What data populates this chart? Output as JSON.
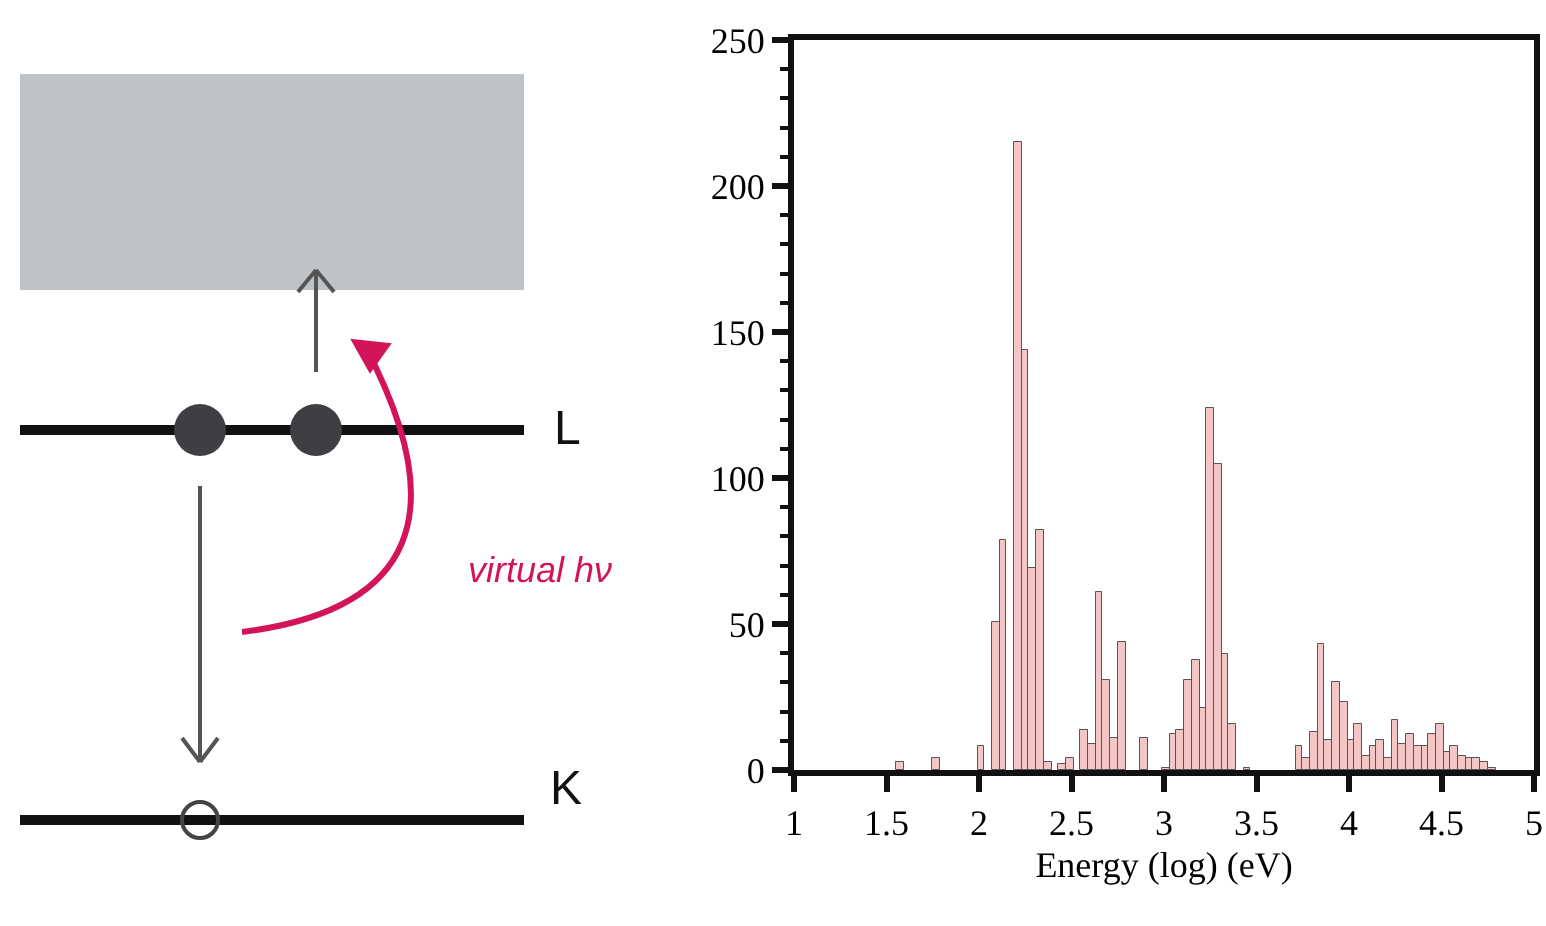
{
  "chart_data": {
    "type": "histogram",
    "xlabel": "Energy (log) (eV)",
    "bins": [
      1.51,
      1.55,
      1.59,
      1.63,
      1.67,
      1.71,
      1.75,
      1.79,
      1.83,
      1.87,
      1.91,
      1.95,
      1.99,
      2.03,
      2.07,
      2.11,
      2.15,
      2.19,
      2.23,
      2.27,
      2.31,
      2.35,
      2.39,
      2.43,
      2.47,
      2.51,
      2.55,
      2.59,
      2.63,
      2.67,
      2.71,
      2.75,
      2.79,
      2.83,
      2.87,
      2.91,
      2.95,
      2.99,
      3.03,
      3.07,
      3.11,
      3.15,
      3.19,
      3.23,
      3.27,
      3.31,
      3.35,
      3.39,
      3.43,
      3.47,
      3.51,
      3.55,
      3.59,
      3.63,
      3.67,
      3.71,
      3.75,
      3.79,
      3.83,
      3.87,
      3.91,
      3.95,
      3.99,
      4.03,
      4.07,
      4.11,
      4.15,
      4.19,
      4.23,
      4.27,
      4.31,
      4.35,
      4.39,
      4.43,
      4.47,
      4.51,
      4.55,
      4.59,
      4.63,
      4.67,
      4.71,
      4.75,
      4.79
    ],
    "values": [
      0,
      3,
      0,
      0,
      0,
      0,
      4,
      0,
      0,
      0,
      0,
      0,
      8,
      0,
      51,
      79,
      0,
      215,
      144,
      69,
      82,
      3,
      0,
      2,
      4,
      0,
      14,
      9,
      61,
      31,
      11,
      44,
      0,
      0,
      11,
      0,
      0,
      1,
      12,
      14,
      31,
      38,
      21,
      124,
      105,
      40,
      16,
      0,
      1,
      0,
      0,
      0,
      0,
      0,
      0,
      8,
      4,
      13,
      43,
      10,
      30,
      23,
      10,
      16,
      5,
      8,
      10,
      4,
      17,
      9,
      12,
      8,
      8,
      12,
      16,
      6,
      8,
      5,
      4,
      4,
      3,
      1
    ],
    "color": "#f4c6c6",
    "xlim": [
      1,
      5
    ],
    "xticks": [
      1,
      1.5,
      2,
      2.5,
      3,
      3.5,
      4,
      4.5,
      5
    ],
    "ylim": [
      0,
      250
    ],
    "yticks": [
      0,
      50,
      100,
      150,
      200,
      250
    ],
    "annotations": [
      "L",
      "K",
      "virtual hν"
    ]
  }
}
